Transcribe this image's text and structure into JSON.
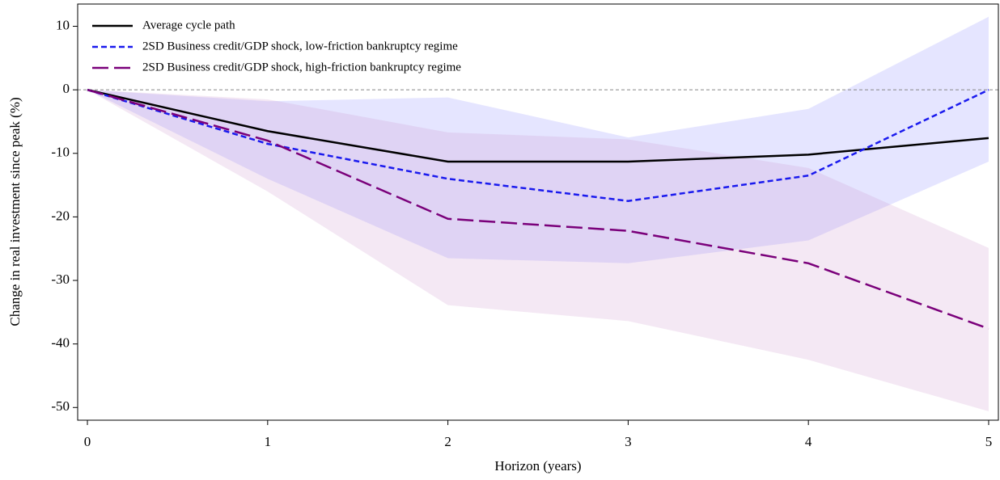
{
  "chart_data": {
    "type": "line",
    "x_label": "Horizon (years)",
    "y_label": "Change in real investment since peak (%)",
    "x": [
      0,
      1,
      2,
      3,
      4,
      5
    ],
    "xlim": [
      -0.054,
      5.054
    ],
    "xticks": [
      0,
      1,
      2,
      3,
      4,
      5
    ],
    "ylim": [
      -52,
      13.5
    ],
    "yticks": [
      10,
      0,
      -10,
      -20,
      -30,
      -40,
      -50
    ],
    "reference_line": 0,
    "legend": "upper-left",
    "series": [
      {
        "name": "Average cycle path",
        "color": "#000000",
        "dash": "solid",
        "values": [
          0,
          -6.5,
          -11.3,
          -11.3,
          -10.2,
          -7.6
        ]
      },
      {
        "name": "2SD Business credit/GDP shock, low-friction bankruptcy regime",
        "color": "#1a1aee",
        "dash": "short",
        "values": [
          0,
          -8.5,
          -14,
          -17.5,
          -13.5,
          0
        ],
        "band_color": "rgba(170,170,255,0.3)",
        "band_upper": [
          0,
          -1.8,
          -1.2,
          -7.5,
          -3,
          11.5
        ],
        "band_lower": [
          0,
          -14,
          -26.5,
          -27.3,
          -23.7,
          -11.3
        ]
      },
      {
        "name": "2SD Business credit/GDP shock, high-friction bankruptcy regime",
        "color": "#7a007a",
        "dash": "long",
        "values": [
          0,
          -8,
          -20.3,
          -22.2,
          -27.3,
          -37.6
        ],
        "band_color": "rgba(205,150,205,0.22)",
        "band_upper": [
          0,
          -1.5,
          -6.7,
          -7.8,
          -12.3,
          -24.9
        ],
        "band_lower": [
          0,
          -16,
          -33.9,
          -36.4,
          -42.5,
          -50.6
        ]
      }
    ]
  }
}
